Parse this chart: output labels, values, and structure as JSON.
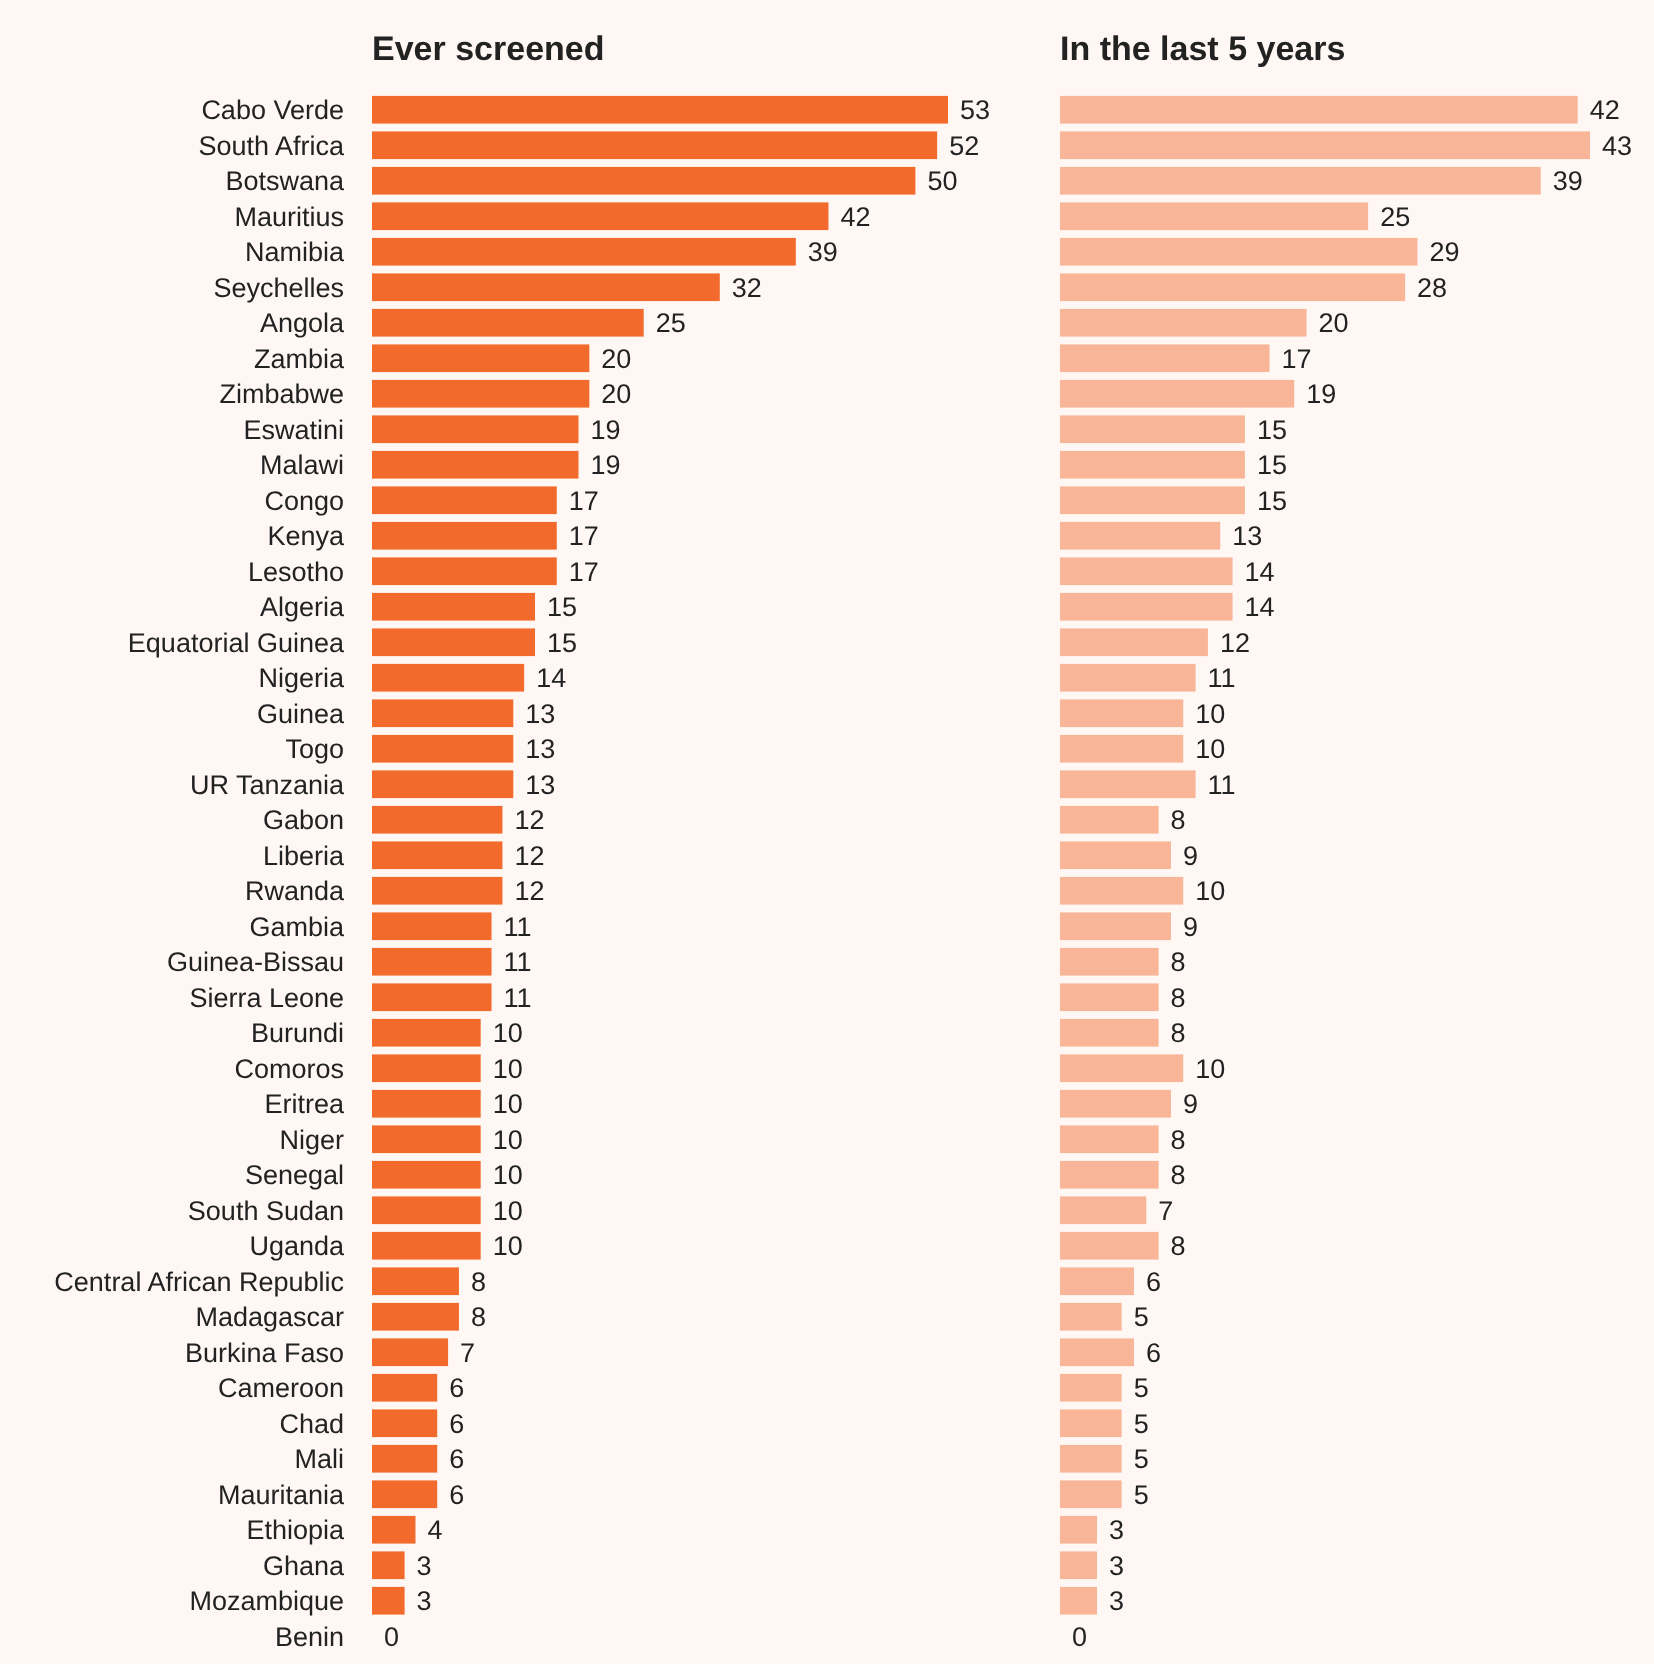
{
  "chart_data": [
    {
      "type": "bar",
      "orientation": "horizontal",
      "title": "Ever screened",
      "color": "#f26b2c",
      "data_labels": true,
      "categories": [
        "Cabo Verde",
        "South Africa",
        "Botswana",
        "Mauritius",
        "Namibia",
        "Seychelles",
        "Angola",
        "Zambia",
        "Zimbabwe",
        "Eswatini",
        "Malawi",
        "Congo",
        "Kenya",
        "Lesotho",
        "Algeria",
        "Equatorial Guinea",
        "Nigeria",
        "Guinea",
        "Togo",
        "UR Tanzania",
        "Gabon",
        "Liberia",
        "Rwanda",
        "Gambia",
        "Guinea-Bissau",
        "Sierra Leone",
        "Burundi",
        "Comoros",
        "Eritrea",
        "Niger",
        "Senegal",
        "South Sudan",
        "Uganda",
        "Central African Republic",
        "Madagascar",
        "Burkina Faso",
        "Cameroon",
        "Chad",
        "Mali",
        "Mauritania",
        "Ethiopia",
        "Ghana",
        "Mozambique",
        "Benin"
      ],
      "values": [
        53,
        52,
        50,
        42,
        39,
        32,
        25,
        20,
        20,
        19,
        19,
        17,
        17,
        17,
        15,
        15,
        14,
        13,
        13,
        13,
        12,
        12,
        12,
        11,
        11,
        11,
        10,
        10,
        10,
        10,
        10,
        10,
        10,
        8,
        8,
        7,
        6,
        6,
        6,
        6,
        4,
        3,
        3,
        0
      ]
    },
    {
      "type": "bar",
      "orientation": "horizontal",
      "title": "In the last 5 years",
      "color": "#f8b597",
      "data_labels": true,
      "categories": [
        null,
        null,
        null,
        null,
        null,
        null,
        null,
        null,
        null,
        null,
        null,
        null,
        null,
        null,
        null,
        null,
        null,
        null,
        null,
        null,
        null,
        null,
        null,
        null,
        null,
        null,
        null,
        null,
        null,
        null,
        null,
        null,
        null,
        null,
        null,
        null,
        null,
        null,
        null,
        null,
        null,
        null,
        null,
        null
      ],
      "values": [
        42,
        43,
        39,
        25,
        29,
        28,
        20,
        17,
        19,
        15,
        15,
        15,
        13,
        14,
        14,
        12,
        11,
        10,
        10,
        11,
        8,
        9,
        10,
        9,
        8,
        8,
        8,
        10,
        9,
        8,
        8,
        7,
        8,
        6,
        5,
        6,
        5,
        5,
        5,
        5,
        3,
        3,
        3,
        0
      ]
    }
  ]
}
